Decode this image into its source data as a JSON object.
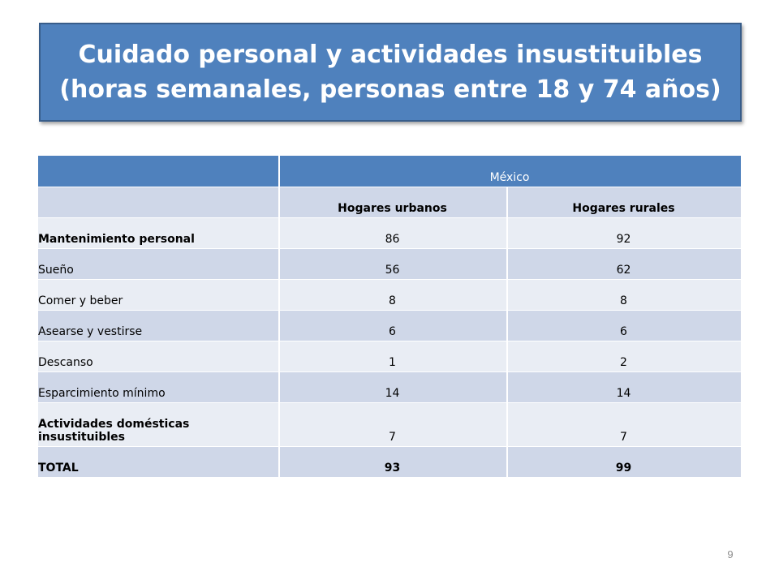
{
  "title": {
    "line1": "Cuidado personal y actividades insustituibles",
    "line2": "(horas semanales, personas entre 18 y 74 años)"
  },
  "table": {
    "group_header": "México",
    "columns": [
      "Hogares urbanos",
      "Hogares rurales"
    ],
    "rows": [
      {
        "label": "Mantenimiento personal",
        "urbanos": "86",
        "rurales": "92"
      },
      {
        "label": "Sueño",
        "urbanos": "56",
        "rurales": "62"
      },
      {
        "label": "Comer y beber",
        "urbanos": "8",
        "rurales": "8"
      },
      {
        "label": "Asearse y vestirse",
        "urbanos": "6",
        "rurales": "6"
      },
      {
        "label": "Descanso",
        "urbanos": "1",
        "rurales": "2"
      },
      {
        "label": "Esparcimiento mínimo",
        "urbanos": "14",
        "rurales": "14"
      },
      {
        "label_line1": "Actividades domésticas",
        "label_line2": "insustituibles",
        "urbanos": "7",
        "rurales": "7"
      },
      {
        "label": "TOTAL",
        "urbanos": "93",
        "rurales": "99"
      }
    ]
  },
  "page_number": "9",
  "colors": {
    "title_background": "#4f81bd",
    "header_background": "#4f81bd",
    "row_dark": "#cfd7e8",
    "row_light": "#e9edf4"
  }
}
